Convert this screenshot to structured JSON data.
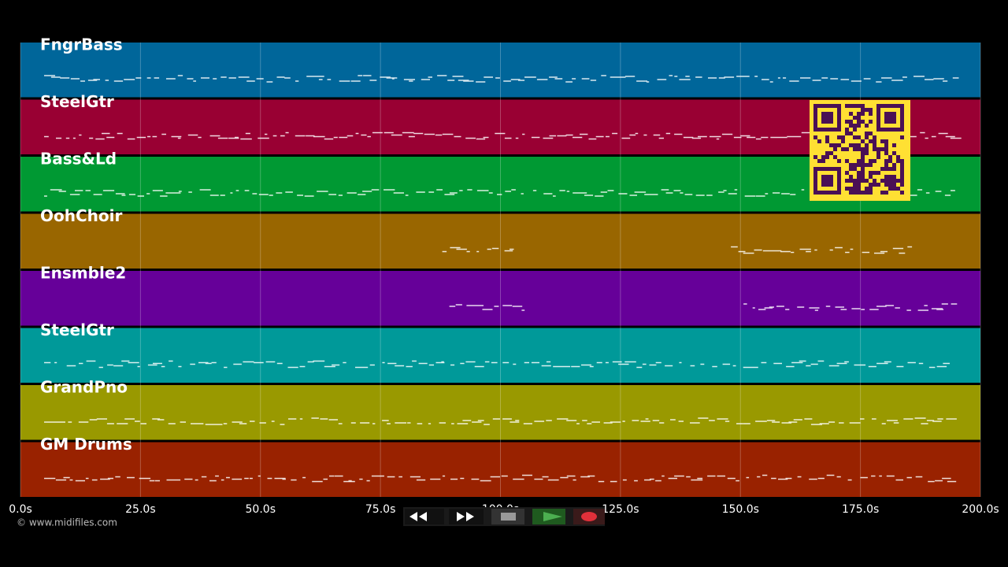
{
  "tracks": [
    {
      "name": "FngrBass",
      "color": "#00669a"
    },
    {
      "name": "SteelGtr",
      "color": "#990033"
    },
    {
      "name": "Bass&Ld",
      "color": "#009933"
    },
    {
      "name": "OohChoir",
      "color": "#996600"
    },
    {
      "name": "Ensmble2",
      "color": "#660099"
    },
    {
      "name": "SteelGtr",
      "color": "#009999"
    },
    {
      "name": "GrandPno",
      "color": "#999900"
    },
    {
      "name": "GM Drums",
      "color": "#992200"
    }
  ],
  "timeline": {
    "xlim": [
      0,
      200
    ],
    "grid": true,
    "xticks": [
      {
        "value": 0,
        "label": "0.0s"
      },
      {
        "value": 25,
        "label": "25.0s"
      },
      {
        "value": 50,
        "label": "50.0s"
      },
      {
        "value": 75,
        "label": "75.0s"
      },
      {
        "value": 100,
        "label": "100.0s"
      },
      {
        "value": 125,
        "label": "125.0s"
      },
      {
        "value": 150,
        "label": "150.0s"
      },
      {
        "value": 175,
        "label": "175.0s"
      },
      {
        "value": 200,
        "label": "200.0s"
      }
    ]
  },
  "footer": {
    "copyright": "© www.midifiles.com"
  }
}
